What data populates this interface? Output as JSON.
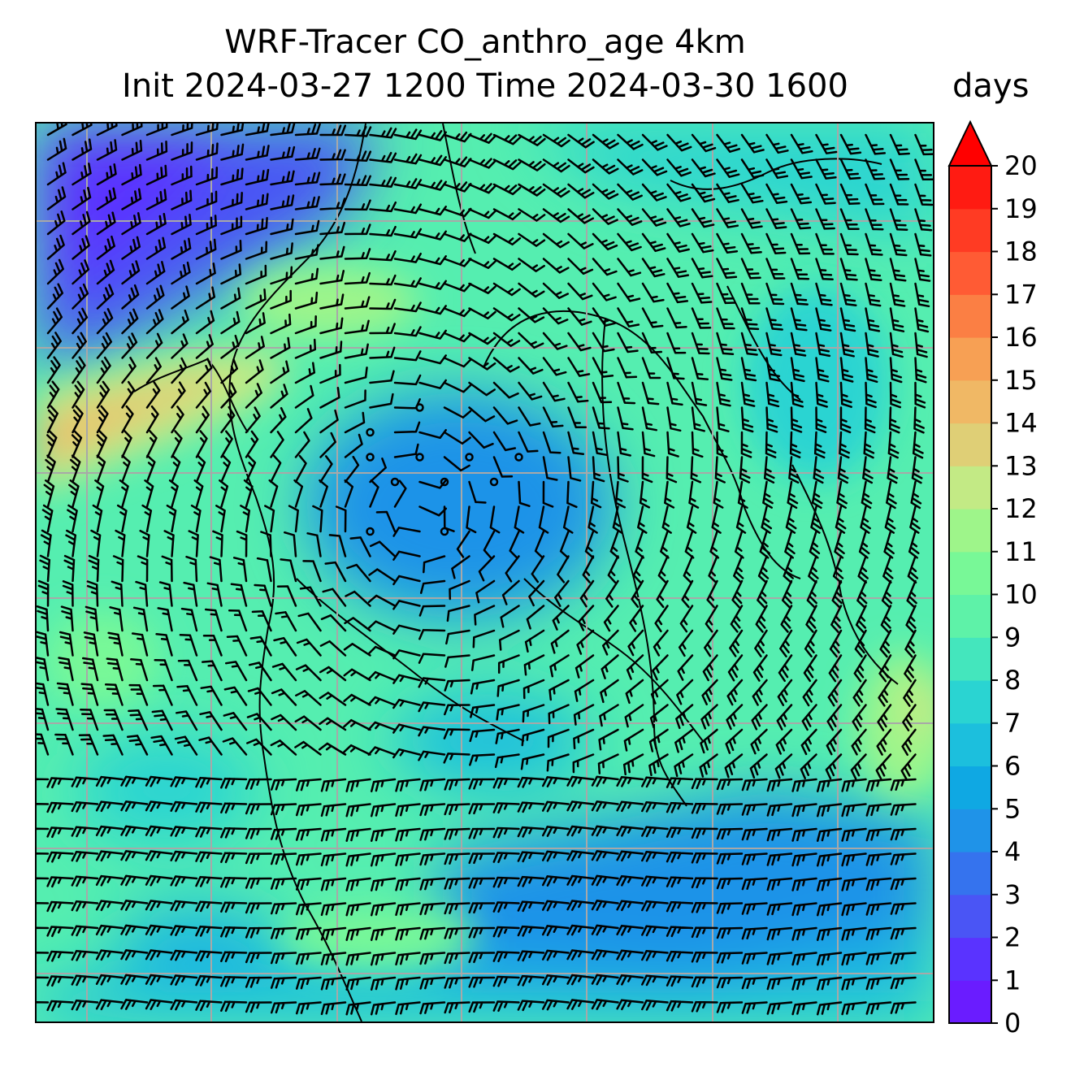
{
  "title": {
    "line1": "WRF-Tracer CO_anthro_age 4km",
    "line2": "Init 2024-03-27 1200 Time 2024-03-30 1600"
  },
  "colorbar": {
    "units": "days",
    "min": 0,
    "max": 20,
    "step": 1,
    "extend": "max",
    "ticks": [
      "0",
      "1",
      "2",
      "3",
      "4",
      "5",
      "6",
      "7",
      "8",
      "9",
      "10",
      "11",
      "12",
      "13",
      "14",
      "15",
      "16",
      "17",
      "18",
      "19",
      "20"
    ],
    "colors": [
      "#6a1cff",
      "#5a33ff",
      "#4a55f5",
      "#3573ee",
      "#1f93e8",
      "#0fa8e3",
      "#1cbfdd",
      "#2ad4d2",
      "#44e6bd",
      "#5ef2a8",
      "#78f897",
      "#9ef58a",
      "#c3ea85",
      "#dfcf76",
      "#f0b865",
      "#f7a054",
      "#fb7f44",
      "#ff5b34",
      "#ff3b23",
      "#ff1b12"
    ],
    "extend_color": "#ff0000"
  },
  "map": {
    "field": "CO_anthro_age",
    "gridlines": true,
    "gridline_color": "#a8a8a8",
    "background_color": "#55eeb0",
    "wind_barbs": true
  }
}
